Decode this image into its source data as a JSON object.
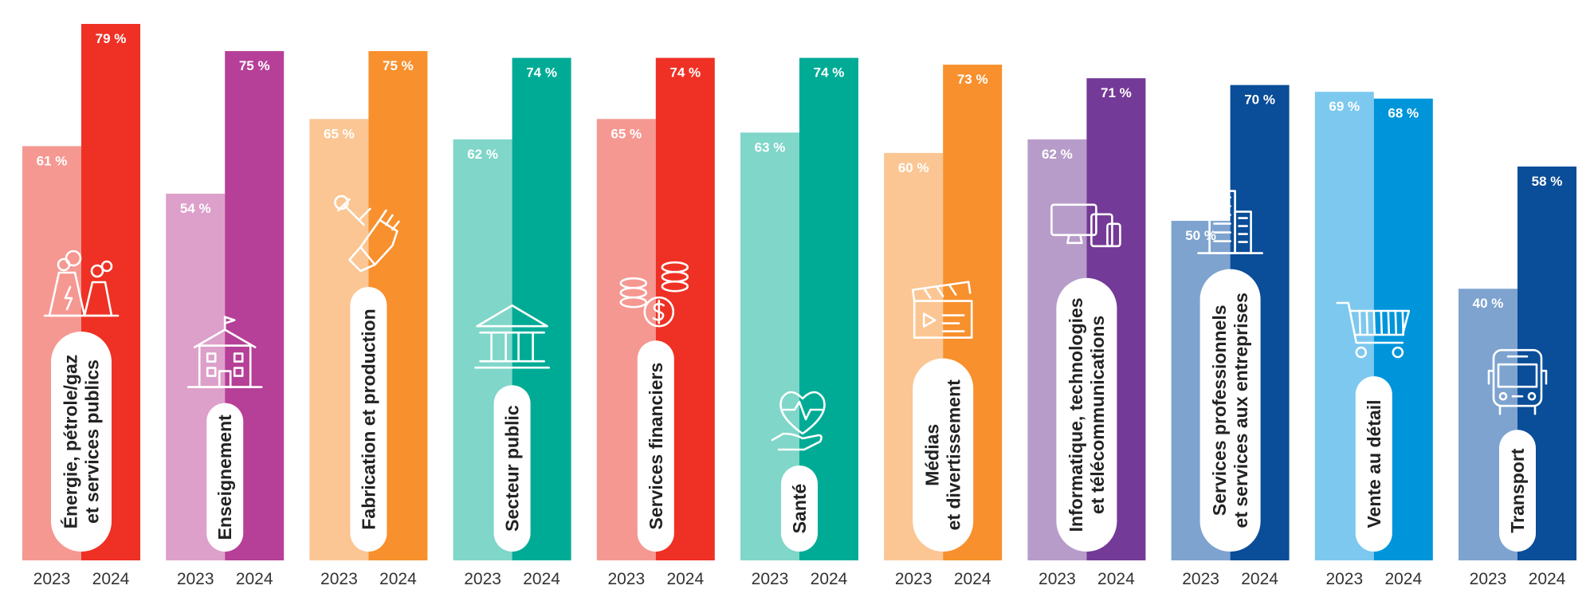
{
  "chart_data": {
    "type": "bar",
    "title": "",
    "ylim": [
      0,
      100
    ],
    "year_labels": [
      "2023",
      "2024"
    ],
    "categories": [
      {
        "label_lines": [
          "Énergie, pétrole/gaz",
          "et services publics"
        ],
        "icon": "power-plant-icon",
        "values": [
          61,
          79
        ],
        "value_labels": [
          "61 %",
          "79 %"
        ],
        "colors": [
          "#f59891",
          "#ee3124"
        ]
      },
      {
        "label_lines": [
          "Enseignement"
        ],
        "icon": "school-icon",
        "values": [
          54,
          75
        ],
        "value_labels": [
          "54 %",
          "75 %"
        ],
        "colors": [
          "#dda0ca",
          "#b63f97"
        ]
      },
      {
        "label_lines": [
          "Fabrication et production"
        ],
        "icon": "wrench-glove-icon",
        "values": [
          65,
          75
        ],
        "value_labels": [
          "65 %",
          "75 %"
        ],
        "colors": [
          "#fbc693",
          "#f7902d"
        ]
      },
      {
        "label_lines": [
          "Secteur public"
        ],
        "icon": "government-building-icon",
        "values": [
          62,
          74
        ],
        "value_labels": [
          "62 %",
          "74 %"
        ],
        "colors": [
          "#7fd6c9",
          "#00ab96"
        ]
      },
      {
        "label_lines": [
          "Services financiers"
        ],
        "icon": "coins-dollar-icon",
        "values": [
          65,
          74
        ],
        "value_labels": [
          "65 %",
          "74 %"
        ],
        "colors": [
          "#f59891",
          "#ee3124"
        ]
      },
      {
        "label_lines": [
          "Santé"
        ],
        "icon": "heart-hand-icon",
        "values": [
          63,
          74
        ],
        "value_labels": [
          "63 %",
          "74 %"
        ],
        "colors": [
          "#7fd6c9",
          "#00ab96"
        ]
      },
      {
        "label_lines": [
          "Médias",
          "et divertissement"
        ],
        "icon": "clapperboard-icon",
        "values": [
          60,
          73
        ],
        "value_labels": [
          "60 %",
          "73 %"
        ],
        "colors": [
          "#fbc693",
          "#f7902d"
        ]
      },
      {
        "label_lines": [
          "Informatique, technologies",
          "et télécommunications"
        ],
        "icon": "devices-icon",
        "values": [
          62,
          71
        ],
        "value_labels": [
          "62 %",
          "71 %"
        ],
        "colors": [
          "#b79cca",
          "#743a97"
        ]
      },
      {
        "label_lines": [
          "Services professionnels",
          "et services aux entreprises"
        ],
        "icon": "office-building-icon",
        "values": [
          50,
          70
        ],
        "value_labels": [
          "50 %",
          "70 %"
        ],
        "colors": [
          "#7ea3cf",
          "#0a4d98"
        ]
      },
      {
        "label_lines": [
          "Vente au détail"
        ],
        "icon": "shopping-cart-icon",
        "values": [
          69,
          68
        ],
        "value_labels": [
          "69 %",
          "68 %"
        ],
        "colors": [
          "#7dc8ee",
          "#0095da"
        ]
      },
      {
        "label_lines": [
          "Transport"
        ],
        "icon": "bus-icon",
        "values": [
          40,
          58
        ],
        "value_labels": [
          "40 %",
          "58 %"
        ],
        "colors": [
          "#7ea3cf",
          "#0a4d98"
        ]
      }
    ],
    "series": [
      {
        "name": "2023",
        "values": [
          61,
          54,
          65,
          62,
          65,
          63,
          60,
          62,
          50,
          69,
          40
        ]
      },
      {
        "name": "2024",
        "values": [
          79,
          75,
          75,
          74,
          74,
          74,
          73,
          71,
          70,
          68,
          58
        ]
      }
    ],
    "legend": "none",
    "grid": false
  }
}
